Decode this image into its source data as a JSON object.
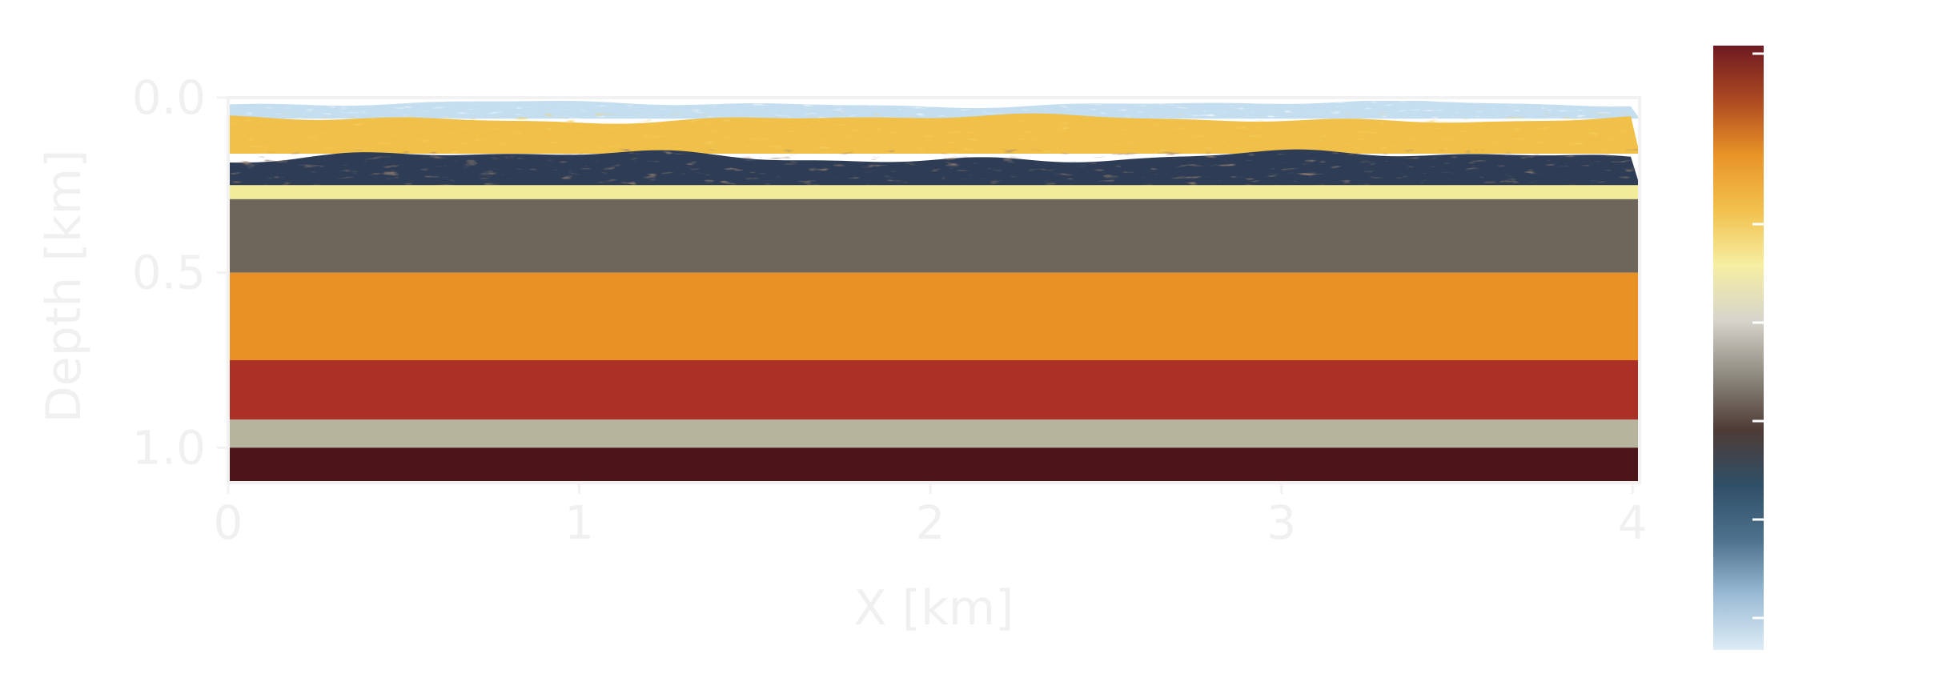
{
  "chart_data": {
    "type": "heatmap",
    "title": "",
    "xlabel": "X [km]",
    "ylabel": "Depth [km]",
    "xlim": [
      0,
      4.02
    ],
    "ylim": [
      1.1,
      0.0
    ],
    "xticks": [
      "0",
      "1",
      "2",
      "3",
      "4"
    ],
    "yticks": [
      "0.0",
      "0.5",
      "1.0"
    ],
    "grid": false,
    "axis_text_color": "#f0f0f0",
    "frame_color": "#f2f2f2",
    "layers": [
      {
        "top": 0.0,
        "bottom": 0.06,
        "color": "#c4def0",
        "texture": "noise-light"
      },
      {
        "top": 0.06,
        "bottom": 0.16,
        "color": "#f0c048",
        "texture": "noise-warm"
      },
      {
        "top": 0.16,
        "bottom": 0.25,
        "color": "#2e3d55",
        "texture": "noise-dark"
      },
      {
        "top": 0.25,
        "bottom": 0.29,
        "color": "#f2ec9a"
      },
      {
        "top": 0.29,
        "bottom": 0.5,
        "color": "#6e665a"
      },
      {
        "top": 0.5,
        "bottom": 0.75,
        "color": "#ea9126"
      },
      {
        "top": 0.75,
        "bottom": 0.92,
        "color": "#ab3025"
      },
      {
        "top": 0.92,
        "bottom": 1.0,
        "color": "#b6b49c"
      },
      {
        "top": 1.0,
        "bottom": 1.1,
        "color": "#4b1519"
      }
    ],
    "colorbar": {
      "colors": [
        "#ddecf5",
        "#9bbbd5",
        "#4e718d",
        "#2f4f66",
        "#4e3b36",
        "#8e8a80",
        "#d6d4cb",
        "#f6eea3",
        "#f2c14d",
        "#e99428",
        "#ad4a22",
        "#6e1a22"
      ],
      "tick_count": 5
    }
  }
}
